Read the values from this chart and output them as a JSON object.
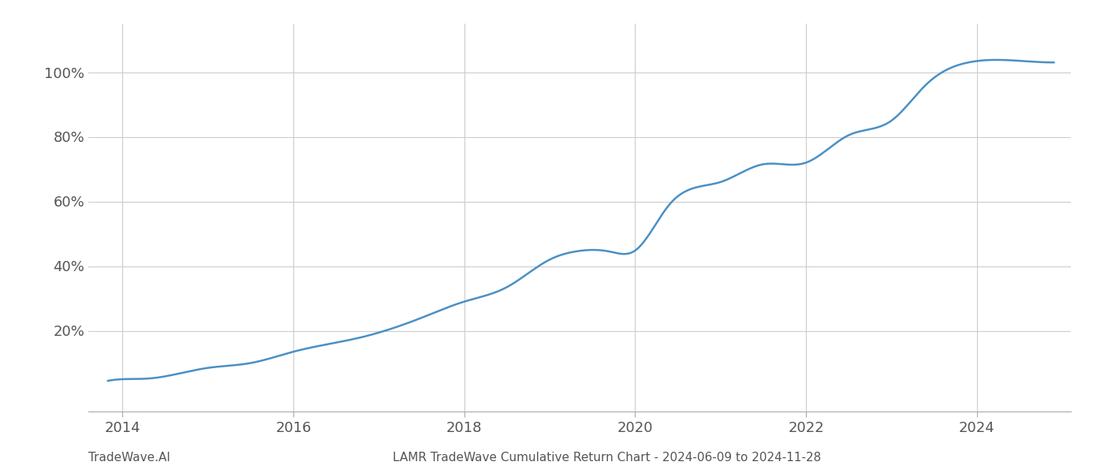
{
  "title": "LAMR TradeWave Cumulative Return Chart - 2024-06-09 to 2024-11-28",
  "watermark": "TradeWave.AI",
  "line_color": "#4a90c4",
  "line_width": 1.8,
  "background_color": "#ffffff",
  "grid_color": "#cccccc",
  "control_x": [
    2013.83,
    2014.0,
    2014.3,
    2015.0,
    2015.5,
    2016.0,
    2016.8,
    2017.5,
    2018.0,
    2018.5,
    2019.0,
    2019.3,
    2019.7,
    2020.0,
    2020.4,
    2021.0,
    2021.5,
    2022.0,
    2022.5,
    2023.0,
    2023.4,
    2023.9,
    2024.5,
    2024.9
  ],
  "control_y": [
    4.5,
    5.0,
    5.2,
    8.5,
    10.0,
    13.5,
    18.0,
    24.0,
    29.0,
    33.5,
    42.0,
    44.5,
    44.5,
    44.8,
    59.0,
    66.0,
    71.5,
    72.0,
    80.5,
    85.0,
    96.0,
    103.0,
    103.5,
    103.0
  ],
  "xlim": [
    2013.6,
    2025.1
  ],
  "ylim": [
    -5,
    115
  ],
  "yticks": [
    20,
    40,
    60,
    80,
    100
  ],
  "xticks": [
    2014,
    2016,
    2018,
    2020,
    2022,
    2024
  ],
  "title_fontsize": 11,
  "watermark_fontsize": 11,
  "tick_fontsize": 13,
  "text_color": "#555555"
}
